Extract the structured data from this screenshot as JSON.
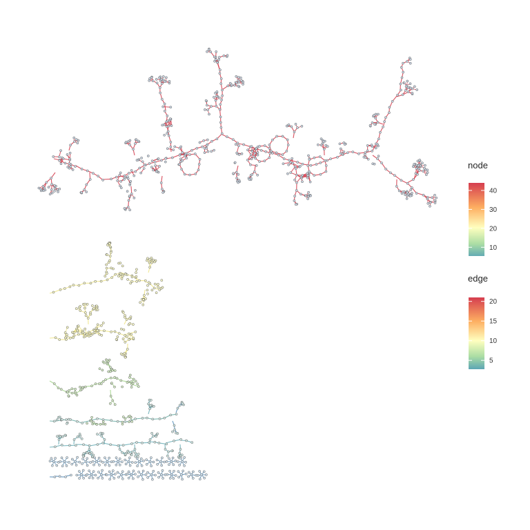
{
  "legends": {
    "node": {
      "title": "node",
      "ticks": [
        "10",
        "20",
        "30",
        "40"
      ],
      "min": 1,
      "max": 44
    },
    "edge": {
      "title": "edge",
      "ticks": [
        "5",
        "10",
        "15",
        "20"
      ],
      "min": 1,
      "max": 21
    }
  },
  "colors": {
    "palette": [
      "#3288BD",
      "#66C2A5",
      "#ABDDA4",
      "#E6F598",
      "#FFFFBF",
      "#FEE08B",
      "#FDAE61",
      "#F46D43",
      "#D53E4F"
    ],
    "node_stroke": "#555555",
    "node_fill": "#c9d3e0"
  },
  "components": [
    {
      "nodes": 44,
      "edge_level": 20,
      "node_level": 44
    },
    {
      "nodes": 22,
      "edge_level": 11,
      "node_level": 22
    },
    {
      "nodes": 20,
      "edge_level": 10,
      "node_level": 20
    },
    {
      "nodes": 16,
      "edge_level": 8,
      "node_level": 16
    },
    {
      "nodes": 10,
      "edge_level": 6,
      "node_level": 10
    },
    {
      "nodes": 8,
      "edge_level": 4,
      "node_level": 8
    },
    {
      "nodes": 5,
      "edge_level": 2,
      "node_level": 5
    },
    {
      "nodes": 3,
      "edge_level": 1,
      "node_level": 3
    }
  ]
}
